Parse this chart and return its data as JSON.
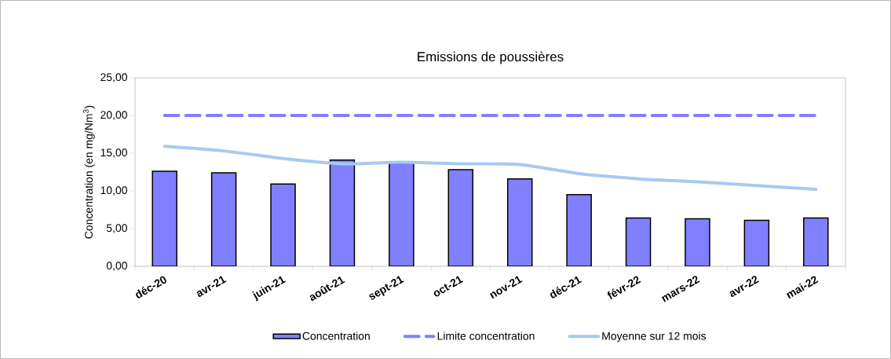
{
  "chart_data": {
    "type": "bar",
    "title": "Emissions de poussières",
    "ylabel": "Concentration (en mg/Nm$^{3}$)",
    "categories": [
      "déc-20",
      "avr-21",
      "juin-21",
      "août-21",
      "sept-21",
      "oct-21",
      "nov-21",
      "déc-21",
      "févr-22",
      "mars-22",
      "avr-22",
      "mai-22"
    ],
    "series": [
      {
        "name": "Concentration",
        "color": "#8080ff",
        "values": [
          12.6,
          12.4,
          10.9,
          14.1,
          13.7,
          12.8,
          11.6,
          9.5,
          6.4,
          6.3,
          6.1,
          6.4
        ]
      },
      {
        "name": "Limite concentration",
        "type": "line",
        "line_style": "dashed",
        "color": "#8080ff",
        "values": [
          20,
          20,
          20,
          20,
          20,
          20,
          20,
          20,
          20,
          20,
          20,
          20
        ]
      },
      {
        "name": "Moyenne sur 12 mois",
        "type": "line",
        "line_style": "solid",
        "color": "#a6caf0",
        "values": [
          15.9,
          15.3,
          14.3,
          13.6,
          13.8,
          13.6,
          13.5,
          12.3,
          11.6,
          11.2,
          10.7,
          10.2
        ]
      }
    ],
    "ylim": [
      0,
      25
    ],
    "yticks": [
      {
        "value": 0,
        "label": "0,00"
      },
      {
        "value": 5,
        "label": "5,00"
      },
      {
        "value": 10,
        "label": "10,00"
      },
      {
        "value": 15,
        "label": "15,00"
      },
      {
        "value": 20,
        "label": "20,00"
      },
      {
        "value": 25,
        "label": "25,00"
      }
    ],
    "legend": "bottom",
    "marker": "none"
  }
}
